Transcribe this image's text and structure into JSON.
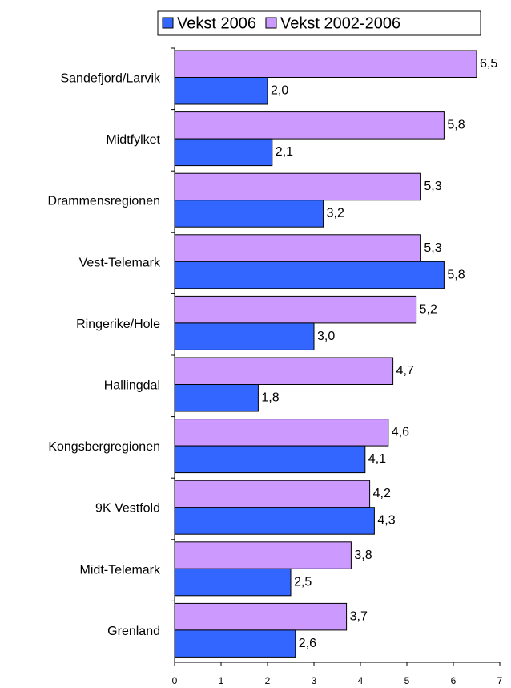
{
  "chart_data": {
    "type": "barh",
    "categories": [
      "Sandefjord/Larvik",
      "Midtfylket",
      "Drammensregionen",
      "Vest-Telemark",
      "Ringerike/Hole",
      "Hallingdal",
      "Kongsbergregionen",
      "9K Vestfold",
      "Midt-Telemark",
      "Grenland"
    ],
    "series": [
      {
        "name": "Vekst 2006",
        "color": "#3366ff",
        "values": [
          2.0,
          2.1,
          3.2,
          5.8,
          3.0,
          1.8,
          4.1,
          4.3,
          2.5,
          2.6
        ],
        "value_labels": [
          "2,0",
          "2,1",
          "3,2",
          "5,8",
          "3,0",
          "1,8",
          "4,1",
          "4,3",
          "2,5",
          "2,6"
        ]
      },
      {
        "name": "Vekst 2002-2006",
        "color": "#cc99ff",
        "values": [
          6.5,
          5.8,
          5.3,
          5.3,
          5.2,
          4.7,
          4.6,
          4.2,
          3.8,
          3.7
        ],
        "value_labels": [
          "6,5",
          "5,8",
          "5,3",
          "5,3",
          "5,2",
          "4,7",
          "4,6",
          "4,2",
          "3,8",
          "3,7"
        ]
      }
    ],
    "xlim": [
      0,
      7
    ],
    "xticks": [
      0,
      1,
      2,
      3,
      4,
      5,
      6,
      7
    ],
    "legend": "top"
  }
}
